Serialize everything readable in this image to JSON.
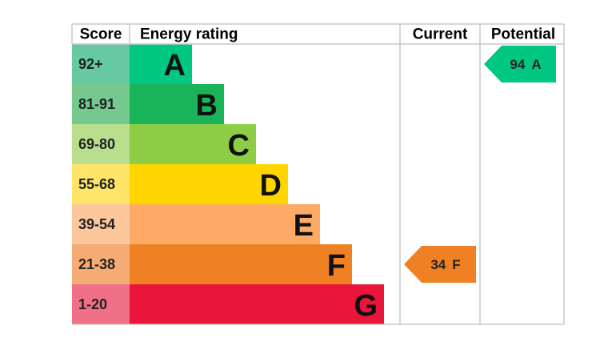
{
  "header": {
    "score": "Score",
    "rating": "Energy rating",
    "current": "Current",
    "potential": "Potential"
  },
  "bands": [
    {
      "range": "92+",
      "letter": "A",
      "color": "#00c781",
      "light": "#66c9a0"
    },
    {
      "range": "81-91",
      "letter": "B",
      "color": "#19b459",
      "light": "#75c98f"
    },
    {
      "range": "69-80",
      "letter": "C",
      "color": "#8dce46",
      "light": "#b9df8e"
    },
    {
      "range": "55-68",
      "letter": "D",
      "color": "#ffd500",
      "light": "#ffe46a"
    },
    {
      "range": "39-54",
      "letter": "E",
      "color": "#fcaa65",
      "light": "#fdc79c"
    },
    {
      "range": "21-38",
      "letter": "F",
      "color": "#ef8023",
      "light": "#f5ac74"
    },
    {
      "range": "1-20",
      "letter": "G",
      "color": "#e9153b",
      "light": "#f07088"
    }
  ],
  "current": {
    "score": 34,
    "letter": "F"
  },
  "potential": {
    "score": 94,
    "letter": "A"
  }
}
